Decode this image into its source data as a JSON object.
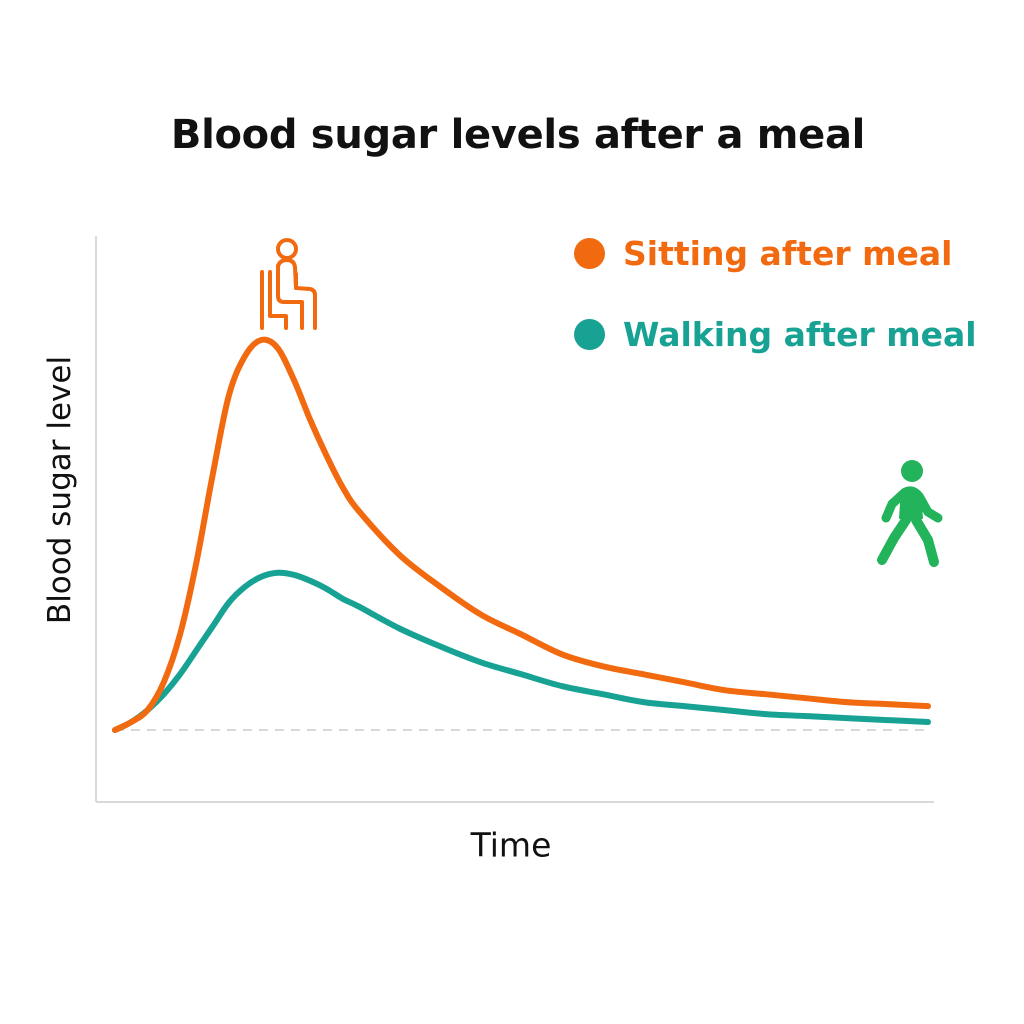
{
  "chart_data": {
    "type": "line",
    "title": "Blood sugar levels after a meal",
    "xlabel": "Time",
    "ylabel": "Blood sugar level",
    "x": [
      0,
      0.02,
      0.04,
      0.06,
      0.08,
      0.1,
      0.12,
      0.14,
      0.16,
      0.18,
      0.2,
      0.22,
      0.24,
      0.26,
      0.28,
      0.3,
      0.35,
      0.4,
      0.45,
      0.5,
      0.55,
      0.6,
      0.65,
      0.7,
      0.75,
      0.8,
      0.85,
      0.9,
      0.95,
      1.0
    ],
    "xlim": [
      0,
      1
    ],
    "ylim": [
      -0.15,
      1.0
    ],
    "baseline": 0,
    "legend_position": "top-right",
    "grid": false,
    "series": [
      {
        "name": "Sitting after meal",
        "color": "#F26A10",
        "icon": "sitting-person-icon",
        "values": [
          0,
          0.02,
          0.05,
          0.12,
          0.24,
          0.42,
          0.64,
          0.84,
          0.94,
          0.98,
          0.96,
          0.88,
          0.78,
          0.69,
          0.61,
          0.55,
          0.44,
          0.36,
          0.29,
          0.24,
          0.19,
          0.16,
          0.14,
          0.12,
          0.1,
          0.09,
          0.08,
          0.07,
          0.065,
          0.06
        ]
      },
      {
        "name": "Walking after meal",
        "color": "#17A294",
        "icon": "walking-person-icon",
        "values": [
          0,
          0.02,
          0.05,
          0.09,
          0.14,
          0.2,
          0.26,
          0.32,
          0.36,
          0.385,
          0.395,
          0.39,
          0.375,
          0.355,
          0.33,
          0.31,
          0.255,
          0.21,
          0.17,
          0.14,
          0.11,
          0.09,
          0.07,
          0.06,
          0.05,
          0.04,
          0.035,
          0.03,
          0.025,
          0.02
        ]
      }
    ]
  },
  "icons": {
    "sitting": {
      "name": "sitting-person-icon",
      "color": "#F26A10"
    },
    "walking": {
      "name": "walking-person-icon",
      "color": "#22B35B"
    }
  }
}
